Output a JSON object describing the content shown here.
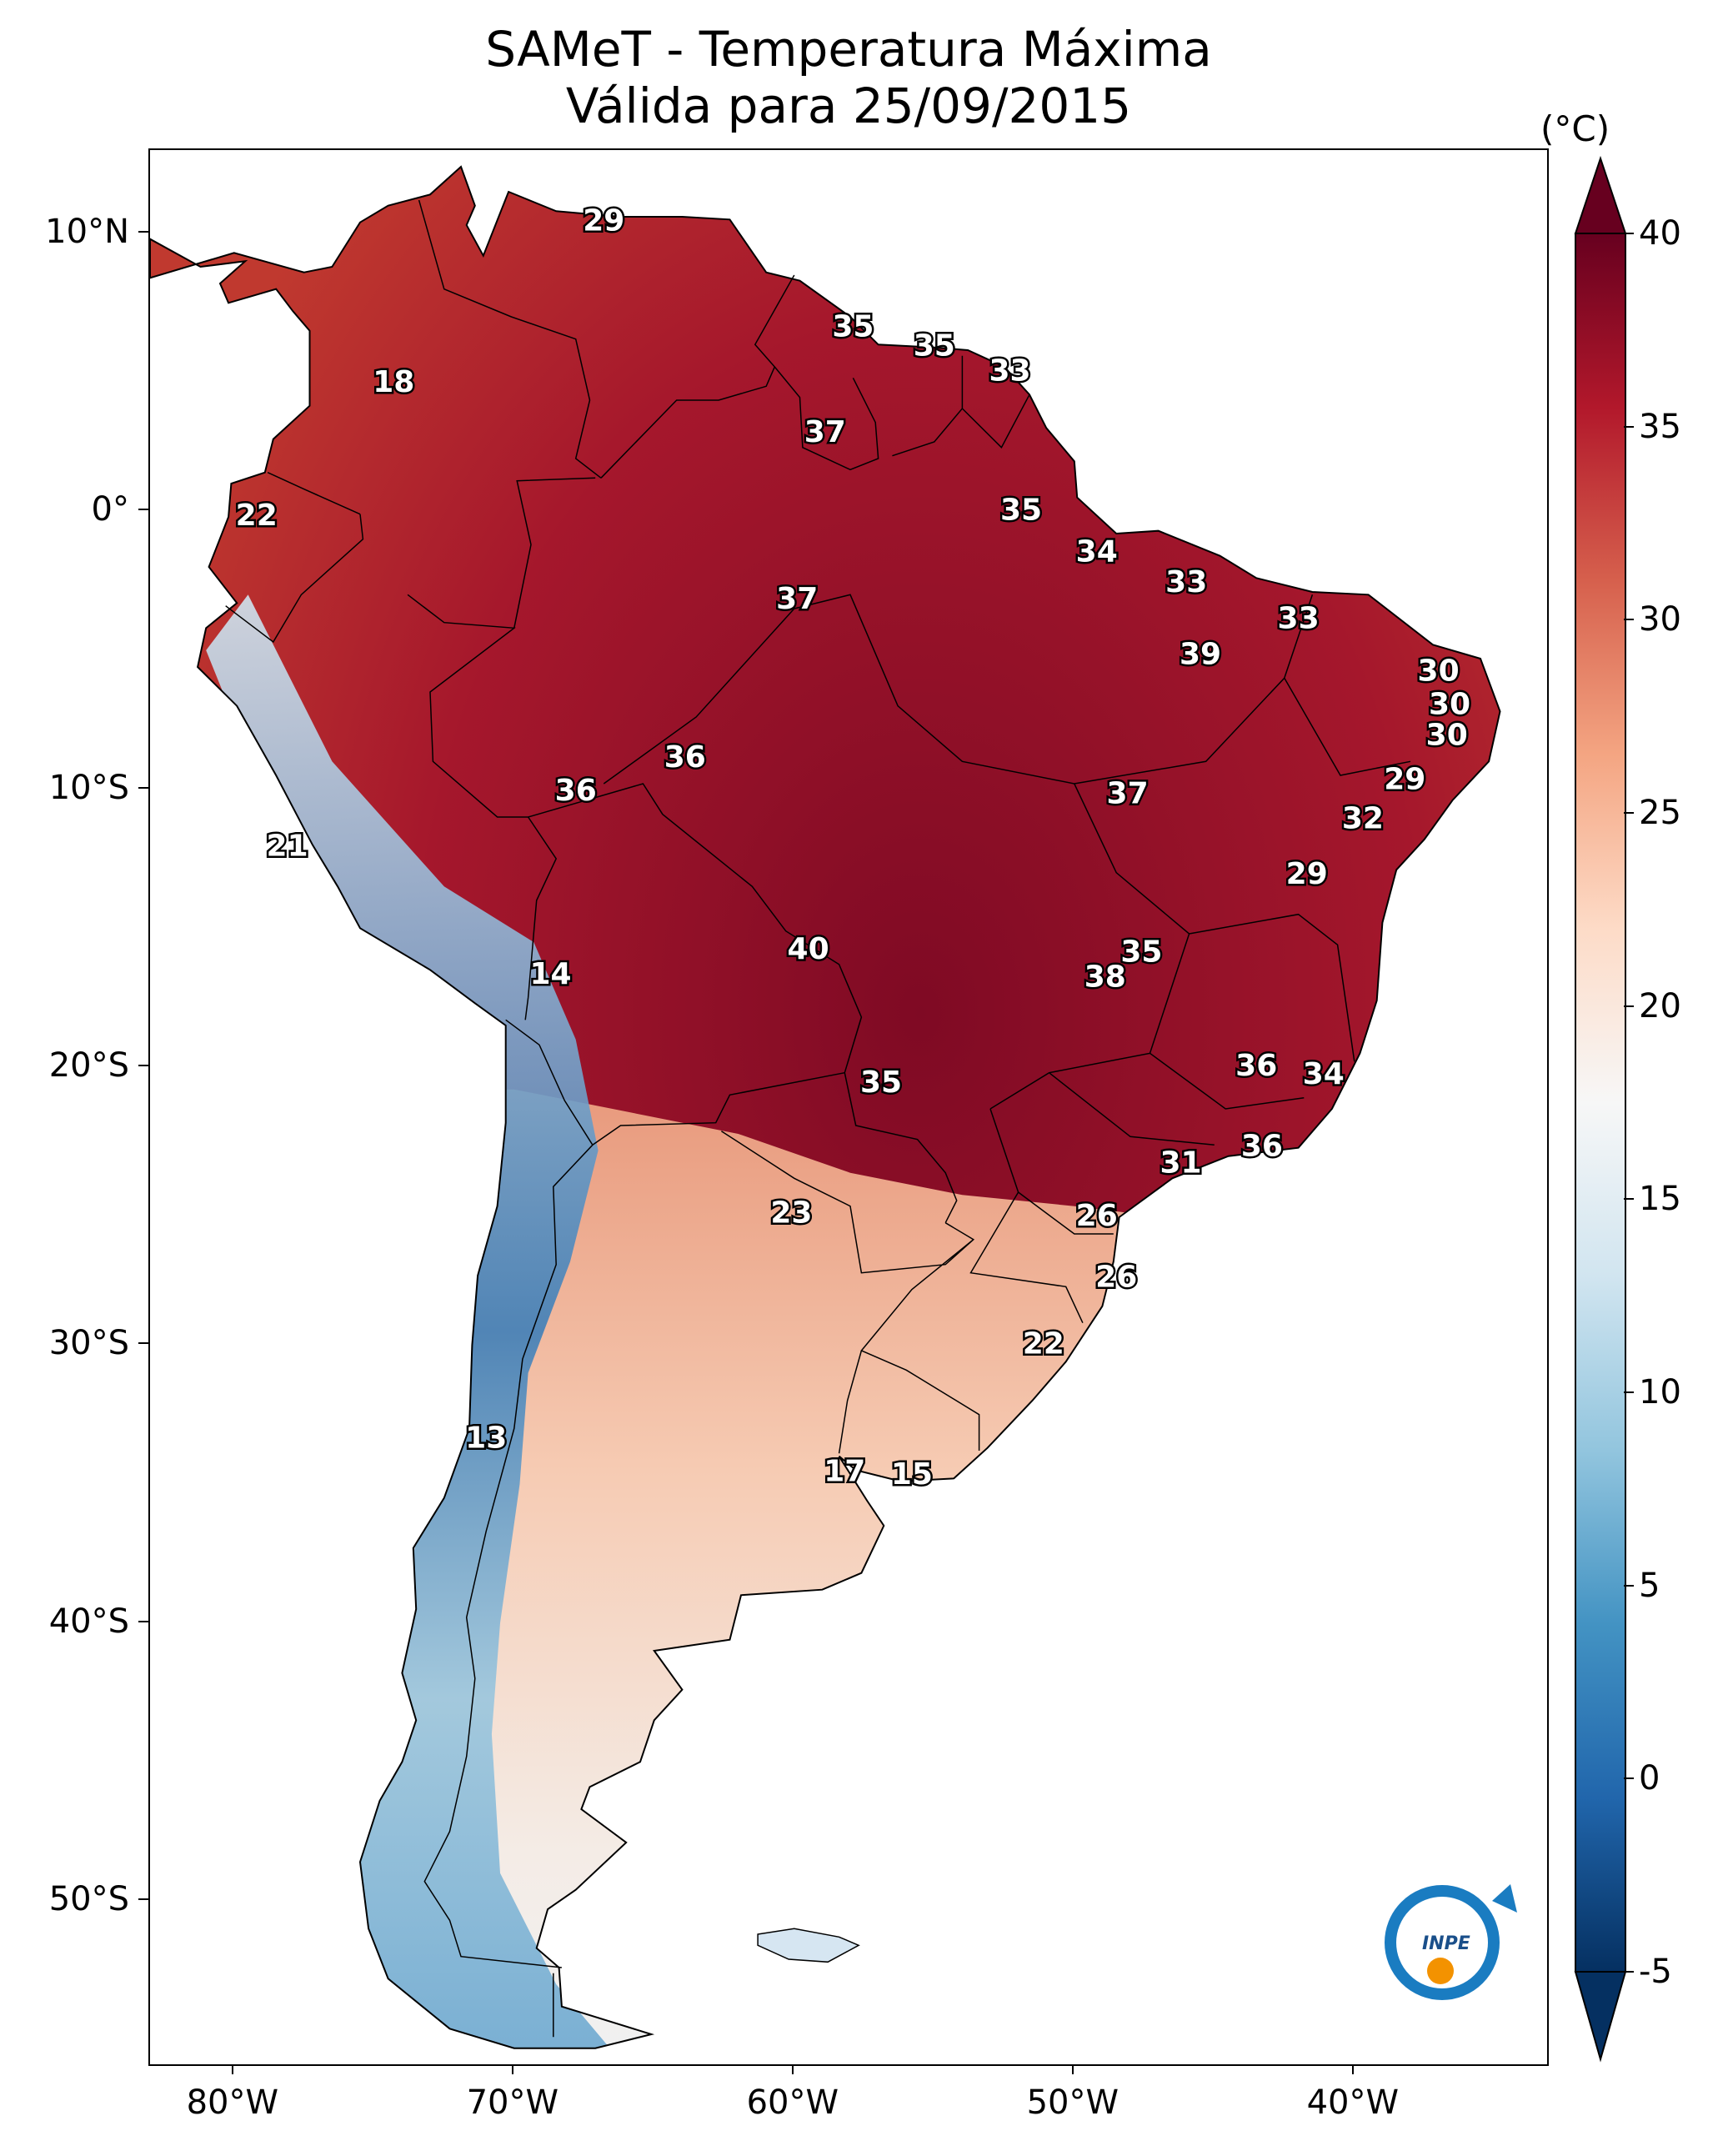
{
  "title": {
    "line1": "SAMeT - Temperatura Máxima",
    "line2": "Válida para 25/09/2015"
  },
  "map": {
    "lon_range": [
      -83,
      -33
    ],
    "lat_range": [
      -56,
      13
    ],
    "lat_ticks": [
      {
        "lat": 10,
        "label": "10°N"
      },
      {
        "lat": 0,
        "label": "0°"
      },
      {
        "lat": -10,
        "label": "10°S"
      },
      {
        "lat": -20,
        "label": "20°S"
      },
      {
        "lat": -30,
        "label": "30°S"
      },
      {
        "lat": -40,
        "label": "40°S"
      },
      {
        "lat": -50,
        "label": "50°S"
      }
    ],
    "lon_ticks": [
      {
        "lon": -80,
        "label": "80°W"
      },
      {
        "lon": -70,
        "label": "70°W"
      },
      {
        "lon": -60,
        "label": "60°W"
      },
      {
        "lon": -50,
        "label": "50°W"
      },
      {
        "lon": -40,
        "label": "40°W"
      }
    ],
    "temperature_labels": [
      {
        "lon": -66.8,
        "lat": 10.4,
        "value": "29"
      },
      {
        "lon": -57.9,
        "lat": 6.6,
        "value": "35"
      },
      {
        "lon": -55.0,
        "lat": 5.9,
        "value": "35"
      },
      {
        "lon": -52.3,
        "lat": 5.0,
        "value": "33"
      },
      {
        "lon": -74.3,
        "lat": 4.6,
        "value": "18"
      },
      {
        "lon": -58.9,
        "lat": 2.8,
        "value": "37"
      },
      {
        "lon": -51.9,
        "lat": 0.0,
        "value": "35"
      },
      {
        "lon": -79.2,
        "lat": -0.2,
        "value": "22"
      },
      {
        "lon": -49.2,
        "lat": -1.5,
        "value": "34"
      },
      {
        "lon": -46.0,
        "lat": -2.6,
        "value": "33"
      },
      {
        "lon": -59.9,
        "lat": -3.2,
        "value": "37"
      },
      {
        "lon": -42.0,
        "lat": -3.9,
        "value": "33"
      },
      {
        "lon": -45.5,
        "lat": -5.2,
        "value": "39"
      },
      {
        "lon": -37.0,
        "lat": -5.8,
        "value": "30"
      },
      {
        "lon": -36.6,
        "lat": -7.0,
        "value": "30"
      },
      {
        "lon": -36.7,
        "lat": -8.1,
        "value": "30"
      },
      {
        "lon": -63.9,
        "lat": -8.9,
        "value": "36"
      },
      {
        "lon": -38.2,
        "lat": -9.7,
        "value": "29"
      },
      {
        "lon": -67.8,
        "lat": -10.1,
        "value": "36"
      },
      {
        "lon": -48.1,
        "lat": -10.2,
        "value": "37"
      },
      {
        "lon": -39.7,
        "lat": -11.1,
        "value": "32"
      },
      {
        "lon": -78.1,
        "lat": -12.1,
        "value": "21"
      },
      {
        "lon": -41.7,
        "lat": -13.1,
        "value": "29"
      },
      {
        "lon": -59.5,
        "lat": -15.8,
        "value": "40"
      },
      {
        "lon": -47.6,
        "lat": -15.9,
        "value": "35"
      },
      {
        "lon": -48.9,
        "lat": -16.8,
        "value": "38"
      },
      {
        "lon": -68.7,
        "lat": -16.7,
        "value": "14"
      },
      {
        "lon": -43.5,
        "lat": -20.0,
        "value": "36"
      },
      {
        "lon": -41.1,
        "lat": -20.3,
        "value": "34"
      },
      {
        "lon": -56.9,
        "lat": -20.6,
        "value": "35"
      },
      {
        "lon": -43.3,
        "lat": -22.9,
        "value": "36"
      },
      {
        "lon": -46.2,
        "lat": -23.5,
        "value": "31"
      },
      {
        "lon": -60.1,
        "lat": -25.3,
        "value": "23"
      },
      {
        "lon": -49.2,
        "lat": -25.4,
        "value": "26"
      },
      {
        "lon": -48.5,
        "lat": -27.6,
        "value": "26"
      },
      {
        "lon": -51.1,
        "lat": -30.0,
        "value": "22"
      },
      {
        "lon": -71.0,
        "lat": -33.4,
        "value": "13"
      },
      {
        "lon": -58.2,
        "lat": -34.6,
        "value": "17"
      },
      {
        "lon": -55.8,
        "lat": -34.7,
        "value": "15"
      }
    ],
    "logo_text": "INPE"
  },
  "colorbar": {
    "unit": "(°C)",
    "min": -5,
    "max": 40,
    "ticks": [
      {
        "value": 40,
        "label": "40"
      },
      {
        "value": 35,
        "label": "35"
      },
      {
        "value": 30,
        "label": "30"
      },
      {
        "value": 25,
        "label": "25"
      },
      {
        "value": 20,
        "label": "20"
      },
      {
        "value": 15,
        "label": "15"
      },
      {
        "value": 10,
        "label": "10"
      },
      {
        "value": 5,
        "label": "5"
      },
      {
        "value": 0,
        "label": "0"
      },
      {
        "value": -5,
        "label": "-5"
      }
    ],
    "colors": [
      "#053061",
      "#2166ac",
      "#4393c3",
      "#92c5de",
      "#d1e5f0",
      "#f7f7f7",
      "#fddbc7",
      "#f4a582",
      "#d6604d",
      "#b2182b",
      "#67001f"
    ]
  }
}
